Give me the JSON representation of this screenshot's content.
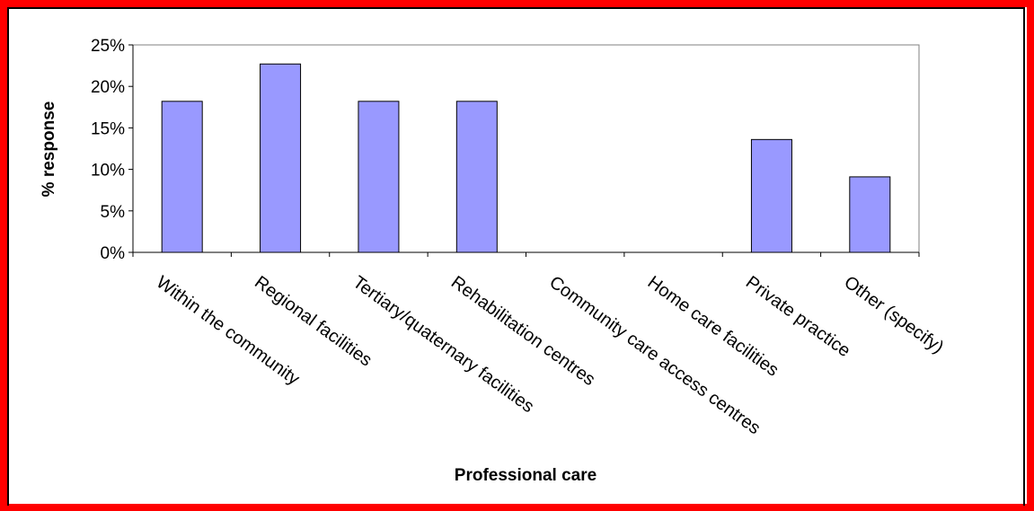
{
  "chart_data": {
    "type": "bar",
    "categories": [
      "Within the community",
      "Regional facilities",
      "Tertiary/quaternary facilities",
      "Rehabilitation centres",
      "Community care access centres",
      "Home care facilities",
      "Private practice",
      "Other (specify)"
    ],
    "values": [
      18.2,
      22.7,
      18.2,
      18.2,
      0,
      0,
      13.6,
      9.1
    ],
    "title": "",
    "xlabel": "Professional care",
    "ylabel": "% response",
    "ylim": [
      0,
      25
    ],
    "yticks": [
      "0%",
      "5%",
      "10%",
      "15%",
      "20%",
      "25%"
    ],
    "ytick_values": [
      0,
      5,
      10,
      15,
      20,
      25
    ],
    "grid": false,
    "legend": "none",
    "bar_color": "#9999ff",
    "frame_color": "#ff0000"
  }
}
